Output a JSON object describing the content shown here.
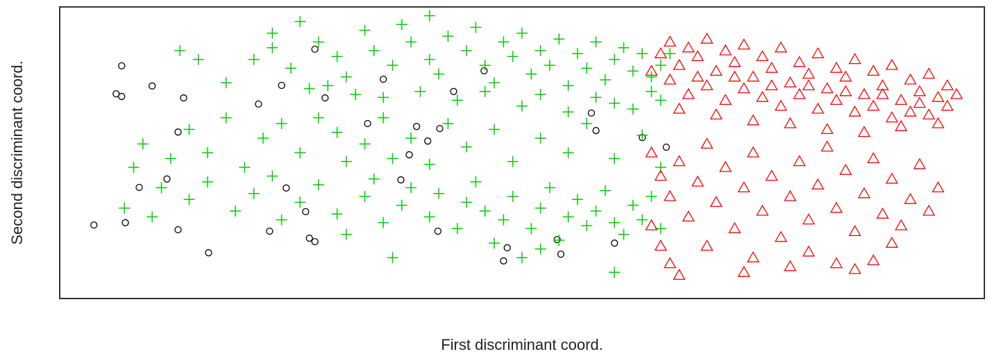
{
  "chart_data": {
    "type": "scatter",
    "xlabel": "First discriminant coord.",
    "ylabel": "Second discriminant coord.",
    "xlim": [
      0,
      100
    ],
    "ylim": [
      0,
      100
    ],
    "series": [
      {
        "color": "#000000",
        "marker": "circle",
        "x": [
          3.7,
          6.7,
          6.1,
          6.7,
          7.1,
          10.0,
          13.4,
          12.8,
          11.6,
          8.6,
          12.8,
          16.1,
          21.5,
          24.0,
          27.6,
          28.7,
          24.5,
          26.6,
          22.7,
          27.0,
          27.6,
          33.3,
          35.0,
          38.6,
          37.8,
          36.9,
          39.8,
          41.1,
          42.6,
          40.9,
          45.9,
          48.4,
          48.0,
          53.8,
          54.2,
          57.5,
          58.0,
          60.0,
          63.0,
          65.6
        ],
        "values": [
          25.2,
          79.8,
          70.2,
          69.3,
          26.0,
          72.9,
          68.8,
          57.1,
          41.0,
          38.1,
          23.6,
          15.7,
          66.7,
          73.1,
          85.5,
          68.8,
          37.9,
          29.8,
          23.1,
          20.7,
          19.5,
          60.0,
          75.2,
          59.0,
          49.3,
          40.7,
          54.0,
          58.3,
          71.0,
          23.1,
          78.1,
          17.4,
          12.9,
          20.2,
          15.2,
          63.6,
          57.6,
          19.0,
          55.2,
          51.9
        ]
      },
      {
        "color": "#00cc00",
        "marker": "plus",
        "x": [
          13,
          15,
          18,
          21,
          23,
          25,
          26,
          28,
          30,
          31,
          33,
          34,
          36,
          37,
          38,
          40,
          41,
          42,
          44,
          45,
          46,
          47,
          48,
          49,
          50,
          51,
          52,
          53,
          54,
          55,
          56,
          57,
          58,
          59,
          60,
          61,
          62,
          63,
          64,
          65,
          66,
          27,
          32,
          39,
          43,
          50,
          55,
          60,
          40,
          23,
          29,
          35,
          46,
          52,
          58,
          62,
          64,
          65,
          8,
          9,
          12,
          14,
          16,
          18,
          20,
          22,
          24,
          26,
          28,
          30,
          31,
          33,
          35,
          36,
          38,
          40,
          42,
          44,
          47,
          49,
          52,
          55,
          57,
          60,
          63,
          65,
          7,
          10,
          11,
          14,
          16,
          19,
          21,
          23,
          24,
          26,
          28,
          30,
          31,
          33,
          34,
          35,
          36,
          37,
          38,
          40,
          41,
          43,
          44,
          45,
          46,
          47,
          48,
          49,
          50,
          51,
          52,
          53,
          54,
          55,
          56,
          57,
          58,
          59,
          60,
          61,
          62,
          63,
          64,
          65,
          60,
          52
        ],
        "values": [
          85,
          82,
          74,
          82,
          86,
          79,
          95,
          88,
          83,
          76,
          92,
          85,
          80,
          94,
          88,
          82,
          77,
          90,
          85,
          93,
          80,
          74,
          88,
          83,
          91,
          77,
          85,
          80,
          89,
          73,
          84,
          79,
          88,
          75,
          82,
          86,
          78,
          84,
          71,
          80,
          84,
          72,
          70,
          71,
          68,
          66,
          64,
          67,
          97,
          91,
          73,
          69,
          71,
          70,
          69,
          65,
          76,
          68,
          45,
          53,
          48,
          58,
          50,
          62,
          45,
          55,
          60,
          50,
          62,
          57,
          47,
          53,
          62,
          48,
          55,
          46,
          60,
          52,
          58,
          47,
          55,
          50,
          60,
          48,
          56,
          45,
          31,
          28,
          38,
          34,
          40,
          30,
          36,
          42,
          27,
          33,
          39,
          29,
          22,
          35,
          41,
          26,
          14,
          32,
          38,
          28,
          36,
          24,
          33,
          40,
          30,
          19,
          27,
          35,
          14,
          24,
          31,
          38,
          20,
          28,
          34,
          25,
          30,
          37,
          26,
          22,
          32,
          27,
          35,
          24,
          9,
          17
        ]
      },
      {
        "color": "#ff0000",
        "marker": "triangle",
        "x": [
          65,
          66,
          67,
          68,
          69,
          70,
          71,
          72,
          73,
          74,
          75,
          76,
          77,
          78,
          79,
          80,
          81,
          82,
          83,
          84,
          85,
          86,
          87,
          88,
          89,
          90,
          91,
          92,
          93,
          94,
          95,
          96,
          97,
          66,
          68,
          70,
          72,
          74,
          76,
          78,
          80,
          82,
          84,
          86,
          88,
          90,
          92,
          94,
          67,
          71,
          75,
          79,
          83,
          87,
          91,
          95,
          64,
          69,
          73,
          77,
          81,
          85,
          89,
          93,
          96,
          64,
          65,
          66,
          67,
          68,
          69,
          70,
          71,
          72,
          73,
          74,
          75,
          76,
          77,
          78,
          79,
          80,
          81,
          82,
          83,
          84,
          85,
          86,
          87,
          88,
          89,
          90,
          91,
          92,
          93,
          94,
          95,
          66,
          67,
          70,
          74,
          75,
          79,
          81,
          84,
          86,
          88,
          90,
          64,
          65
        ],
        "values": [
          84,
          88,
          80,
          86,
          83,
          89,
          78,
          85,
          81,
          87,
          76,
          83,
          79,
          86,
          74,
          81,
          77,
          84,
          72,
          79,
          76,
          82,
          70,
          78,
          73,
          80,
          68,
          75,
          71,
          77,
          69,
          73,
          70,
          75,
          70,
          73,
          68,
          72,
          69,
          66,
          70,
          65,
          68,
          64,
          66,
          62,
          64,
          63,
          65,
          63,
          61,
          60,
          58,
          57,
          59,
          60,
          78,
          76,
          76,
          73,
          73,
          71,
          70,
          67,
          66,
          50,
          42,
          35,
          47,
          28,
          40,
          53,
          33,
          45,
          24,
          38,
          50,
          30,
          42,
          21,
          35,
          47,
          27,
          39,
          52,
          31,
          44,
          23,
          36,
          48,
          29,
          41,
          25,
          34,
          46,
          30,
          38,
          12,
          8,
          18,
          9,
          14,
          11,
          16,
          12,
          10,
          13,
          19,
          25,
          18
        ]
      }
    ]
  }
}
